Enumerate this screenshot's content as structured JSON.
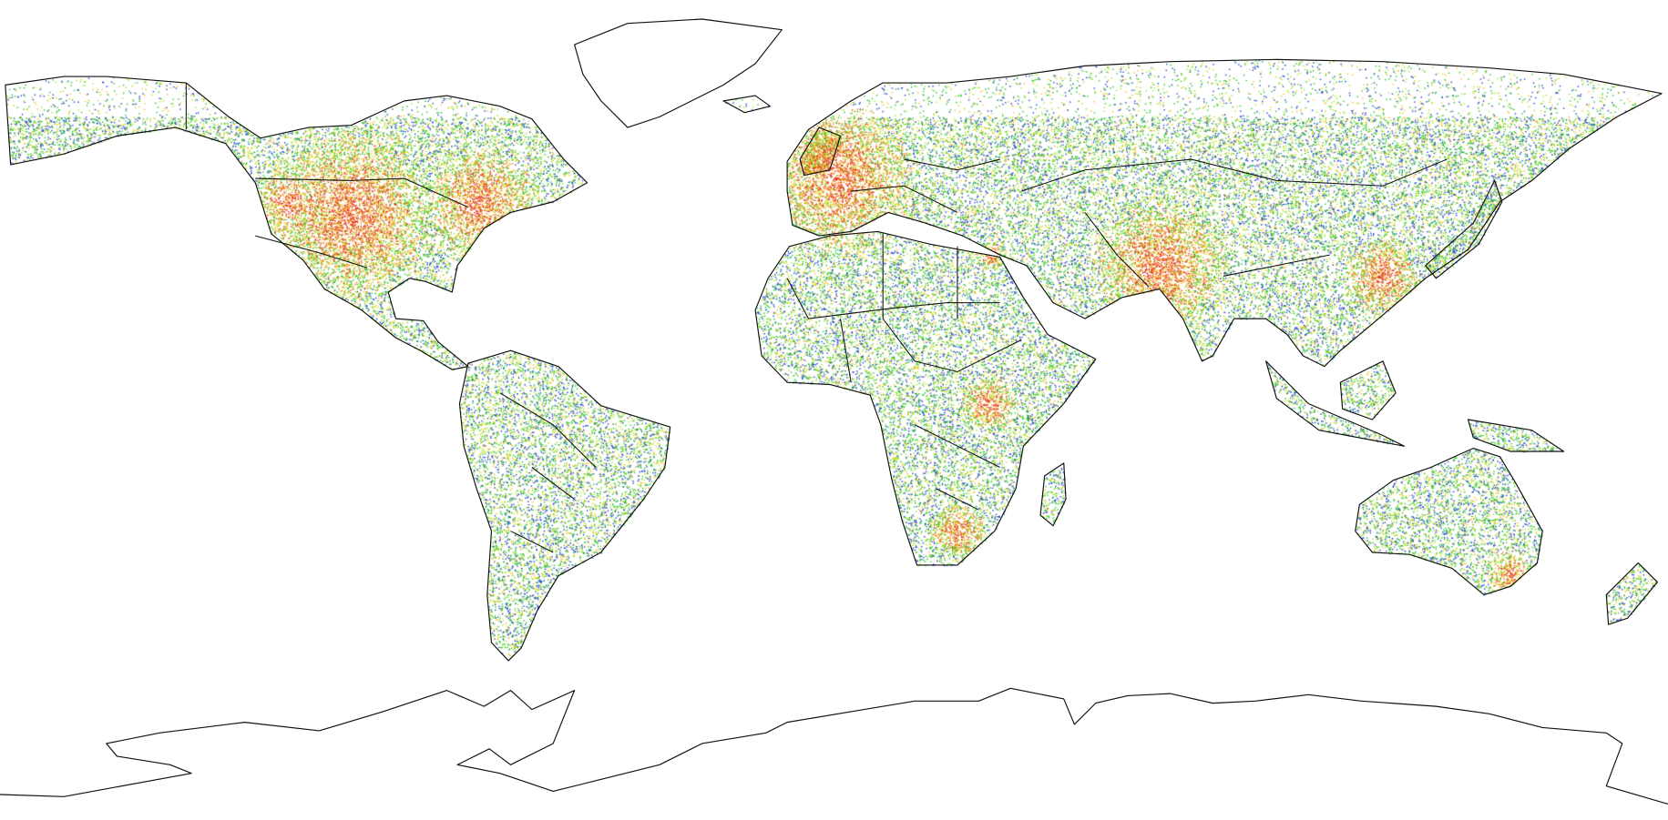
{
  "map": {
    "colors": {
      "outline": "#111111",
      "low": "#1f3fd0",
      "mid_low": "#22c422",
      "mid": "#a8e020",
      "mid_high": "#f2c21a",
      "high": "#f06a1a",
      "very_high": "#e0301a"
    }
  }
}
